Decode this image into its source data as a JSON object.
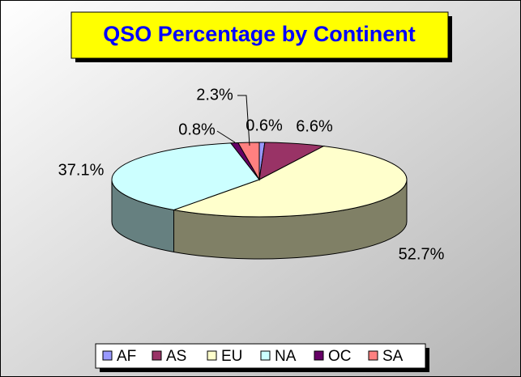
{
  "chart_data": {
    "type": "pie3d",
    "title": "QSO Percentage by Continent",
    "categories": [
      "AF",
      "AS",
      "EU",
      "NA",
      "OC",
      "SA"
    ],
    "values": [
      0.6,
      6.6,
      52.7,
      37.1,
      0.8,
      2.3
    ],
    "value_labels": [
      "0.6%",
      "6.6%",
      "52.7%",
      "37.1%",
      "0.8%",
      "2.3%"
    ],
    "colors": [
      "#9999ff",
      "#993366",
      "#ffffcc",
      "#ccffff",
      "#660066",
      "#ff8080"
    ],
    "legend": "bottom"
  }
}
